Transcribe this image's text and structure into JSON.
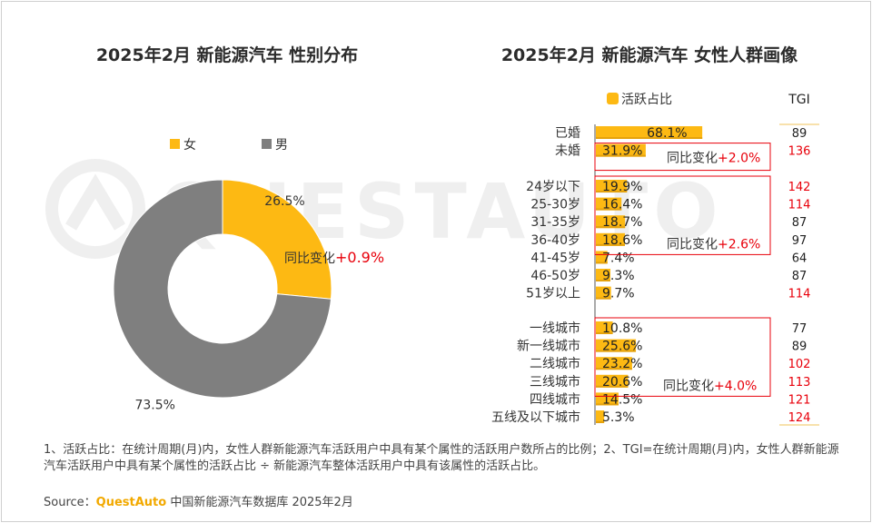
{
  "titles": {
    "left": "2025年2月 新能源汽车 性别分布",
    "right": "2025年2月 新能源汽车 女性人群画像"
  },
  "colors": {
    "accent": "#FDB913",
    "gray": "#7F7F7F",
    "red": "#E8000B",
    "watermark": "#EFEFEF"
  },
  "watermark": "QUESTAUTO",
  "chart_data": [
    {
      "type": "pie",
      "donut": true,
      "title": "2025年2月 新能源汽车 性别分布",
      "legend": [
        "女",
        "男"
      ],
      "legend_placement": "top-left",
      "slices": [
        {
          "name": "女",
          "value": 26.5,
          "label": "26.5%",
          "color": "#FDB913"
        },
        {
          "name": "男",
          "value": 73.5,
          "label": "73.5%",
          "color": "#7F7F7F"
        }
      ],
      "annotation": {
        "prefix": "同比变化",
        "value": "+0.9%"
      }
    },
    {
      "type": "bar",
      "orientation": "horizontal",
      "title": "2025年2月 新能源汽车 女性人群画像",
      "legend": [
        "活跃占比"
      ],
      "tgi_header": "TGI",
      "groups": [
        {
          "categories": [
            "已婚",
            "未婚"
          ],
          "values": [
            68.1,
            31.9
          ],
          "labels": [
            "68.1%",
            "31.9%"
          ],
          "tgi": [
            "89",
            "136"
          ],
          "tgi_red": [
            false,
            true
          ],
          "change": {
            "prefix": "同比变化",
            "value": "+2.0%"
          }
        },
        {
          "categories": [
            "24岁以下",
            "25-30岁",
            "31-35岁",
            "36-40岁",
            "41-45岁",
            "46-50岁",
            "51岁以上"
          ],
          "values": [
            19.9,
            16.4,
            18.7,
            18.6,
            7.4,
            9.3,
            9.7
          ],
          "labels": [
            "19.9%",
            "16.4%",
            "18.7%",
            "18.6%",
            "7.4%",
            "9.3%",
            "9.7%"
          ],
          "tgi": [
            "142",
            "114",
            "87",
            "97",
            "64",
            "87",
            "114"
          ],
          "tgi_red": [
            true,
            true,
            false,
            false,
            false,
            false,
            true
          ],
          "change": {
            "prefix": "同比变化",
            "value": "+2.6%"
          }
        },
        {
          "categories": [
            "一线城市",
            "新一线城市",
            "二线城市",
            "三线城市",
            "四线城市",
            "五线及以下城市"
          ],
          "values": [
            10.8,
            25.6,
            23.2,
            20.6,
            14.5,
            5.3
          ],
          "labels": [
            "10.8%",
            "25.6%",
            "23.2%",
            "20.6%",
            "14.5%",
            "5.3%"
          ],
          "tgi": [
            "77",
            "89",
            "102",
            "113",
            "121",
            "124"
          ],
          "tgi_red": [
            false,
            false,
            true,
            true,
            true,
            true
          ],
          "change": {
            "prefix": "同比变化",
            "value": "+4.0%"
          }
        }
      ]
    }
  ],
  "footnote": "1、活跃占比：在统计周期(月)内，女性人群新能源汽车活跃用户中具有某个属性的活跃用户数所占的比例；2、TGI=在统计周期(月)内，女性人群新能源汽车活跃用户中具有某个属性的活跃占比 ÷ 新能源汽车整体活跃用户中具有该属性的活跃占比。",
  "source": {
    "prefix": "Source：",
    "brand": "QuestAuto",
    "text": " 中国新能源汽车数据库 2025年2月"
  }
}
